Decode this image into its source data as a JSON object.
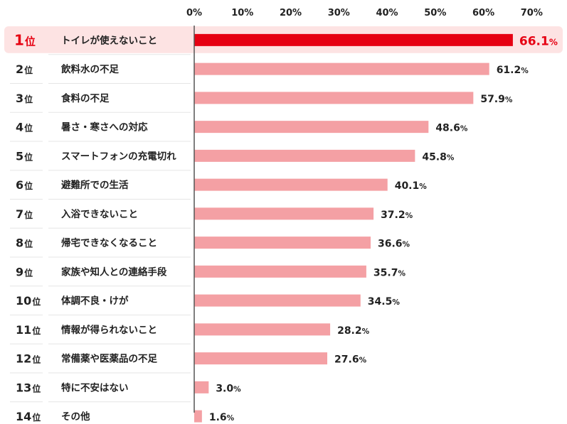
{
  "chart_data": {
    "type": "bar",
    "orientation": "horizontal",
    "xlim": [
      0,
      70
    ],
    "x_ticks": [
      "0%",
      "10%",
      "20%",
      "30%",
      "40%",
      "50%",
      "60%",
      "70%"
    ],
    "grid": false,
    "highlight_color": "#e60012",
    "highlight_row_bg": "#fde3e3",
    "bar_color": "#f4a0a4",
    "value_suffix": "%",
    "rows": [
      {
        "rank": "1",
        "rank_suffix": "位",
        "label": "トイレが使えないこと",
        "value": 66.1,
        "value_text": "66.1",
        "highlight": true
      },
      {
        "rank": "2",
        "rank_suffix": "位",
        "label": "飲料水の不足",
        "value": 61.2,
        "value_text": "61.2",
        "highlight": false
      },
      {
        "rank": "3",
        "rank_suffix": "位",
        "label": "食料の不足",
        "value": 57.9,
        "value_text": "57.9",
        "highlight": false
      },
      {
        "rank": "4",
        "rank_suffix": "位",
        "label": "暑さ・寒さへの対応",
        "value": 48.6,
        "value_text": "48.6",
        "highlight": false
      },
      {
        "rank": "5",
        "rank_suffix": "位",
        "label": "スマートフォンの充電切れ",
        "value": 45.8,
        "value_text": "45.8",
        "highlight": false
      },
      {
        "rank": "6",
        "rank_suffix": "位",
        "label": "避難所での生活",
        "value": 40.1,
        "value_text": "40.1",
        "highlight": false
      },
      {
        "rank": "7",
        "rank_suffix": "位",
        "label": "入浴できないこと",
        "value": 37.2,
        "value_text": "37.2",
        "highlight": false
      },
      {
        "rank": "8",
        "rank_suffix": "位",
        "label": "帰宅できなくなること",
        "value": 36.6,
        "value_text": "36.6",
        "highlight": false
      },
      {
        "rank": "9",
        "rank_suffix": "位",
        "label": "家族や知人との連絡手段",
        "value": 35.7,
        "value_text": "35.7",
        "highlight": false
      },
      {
        "rank": "10",
        "rank_suffix": "位",
        "label": "体調不良・けが",
        "value": 34.5,
        "value_text": "34.5",
        "highlight": false
      },
      {
        "rank": "11",
        "rank_suffix": "位",
        "label": "情報が得られないこと",
        "value": 28.2,
        "value_text": "28.2",
        "highlight": false
      },
      {
        "rank": "12",
        "rank_suffix": "位",
        "label": "常備薬や医薬品の不足",
        "value": 27.6,
        "value_text": "27.6",
        "highlight": false
      },
      {
        "rank": "13",
        "rank_suffix": "位",
        "label": "特に不安はない",
        "value": 3.0,
        "value_text": "3.0",
        "highlight": false
      },
      {
        "rank": "14",
        "rank_suffix": "位",
        "label": "その他",
        "value": 1.6,
        "value_text": "1.6",
        "highlight": false
      }
    ]
  }
}
